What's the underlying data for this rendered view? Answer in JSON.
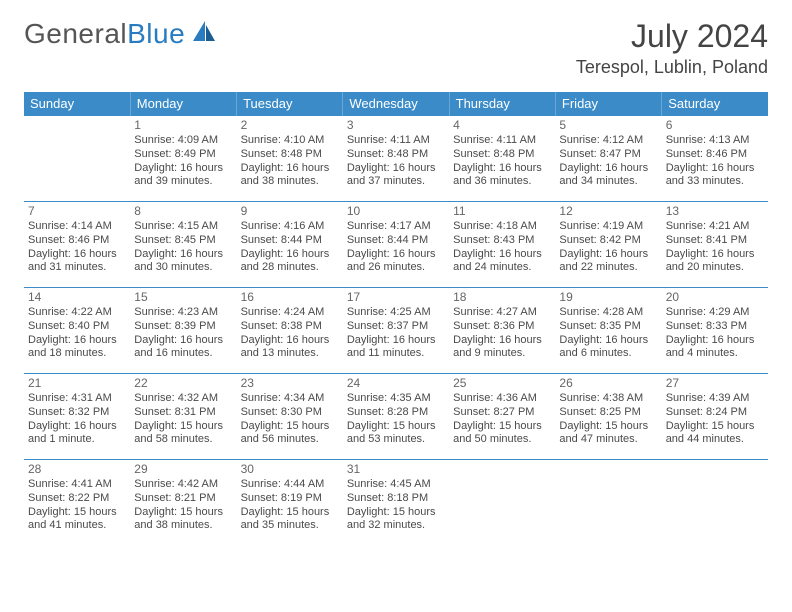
{
  "brand": {
    "part1": "General",
    "part2": "Blue"
  },
  "title": "July 2024",
  "location": "Terespol, Lublin, Poland",
  "colors": {
    "header_bg": "#3b8bc8",
    "header_text": "#ffffff",
    "rule": "#3b8bc8",
    "brand_blue": "#2a7cc0"
  },
  "weekdays": [
    "Sunday",
    "Monday",
    "Tuesday",
    "Wednesday",
    "Thursday",
    "Friday",
    "Saturday"
  ],
  "first_weekday_index": 1,
  "days": [
    {
      "n": 1,
      "sunrise": "4:09 AM",
      "sunset": "8:49 PM",
      "daylight": "16 hours and 39 minutes."
    },
    {
      "n": 2,
      "sunrise": "4:10 AM",
      "sunset": "8:48 PM",
      "daylight": "16 hours and 38 minutes."
    },
    {
      "n": 3,
      "sunrise": "4:11 AM",
      "sunset": "8:48 PM",
      "daylight": "16 hours and 37 minutes."
    },
    {
      "n": 4,
      "sunrise": "4:11 AM",
      "sunset": "8:48 PM",
      "daylight": "16 hours and 36 minutes."
    },
    {
      "n": 5,
      "sunrise": "4:12 AM",
      "sunset": "8:47 PM",
      "daylight": "16 hours and 34 minutes."
    },
    {
      "n": 6,
      "sunrise": "4:13 AM",
      "sunset": "8:46 PM",
      "daylight": "16 hours and 33 minutes."
    },
    {
      "n": 7,
      "sunrise": "4:14 AM",
      "sunset": "8:46 PM",
      "daylight": "16 hours and 31 minutes."
    },
    {
      "n": 8,
      "sunrise": "4:15 AM",
      "sunset": "8:45 PM",
      "daylight": "16 hours and 30 minutes."
    },
    {
      "n": 9,
      "sunrise": "4:16 AM",
      "sunset": "8:44 PM",
      "daylight": "16 hours and 28 minutes."
    },
    {
      "n": 10,
      "sunrise": "4:17 AM",
      "sunset": "8:44 PM",
      "daylight": "16 hours and 26 minutes."
    },
    {
      "n": 11,
      "sunrise": "4:18 AM",
      "sunset": "8:43 PM",
      "daylight": "16 hours and 24 minutes."
    },
    {
      "n": 12,
      "sunrise": "4:19 AM",
      "sunset": "8:42 PM",
      "daylight": "16 hours and 22 minutes."
    },
    {
      "n": 13,
      "sunrise": "4:21 AM",
      "sunset": "8:41 PM",
      "daylight": "16 hours and 20 minutes."
    },
    {
      "n": 14,
      "sunrise": "4:22 AM",
      "sunset": "8:40 PM",
      "daylight": "16 hours and 18 minutes."
    },
    {
      "n": 15,
      "sunrise": "4:23 AM",
      "sunset": "8:39 PM",
      "daylight": "16 hours and 16 minutes."
    },
    {
      "n": 16,
      "sunrise": "4:24 AM",
      "sunset": "8:38 PM",
      "daylight": "16 hours and 13 minutes."
    },
    {
      "n": 17,
      "sunrise": "4:25 AM",
      "sunset": "8:37 PM",
      "daylight": "16 hours and 11 minutes."
    },
    {
      "n": 18,
      "sunrise": "4:27 AM",
      "sunset": "8:36 PM",
      "daylight": "16 hours and 9 minutes."
    },
    {
      "n": 19,
      "sunrise": "4:28 AM",
      "sunset": "8:35 PM",
      "daylight": "16 hours and 6 minutes."
    },
    {
      "n": 20,
      "sunrise": "4:29 AM",
      "sunset": "8:33 PM",
      "daylight": "16 hours and 4 minutes."
    },
    {
      "n": 21,
      "sunrise": "4:31 AM",
      "sunset": "8:32 PM",
      "daylight": "16 hours and 1 minute."
    },
    {
      "n": 22,
      "sunrise": "4:32 AM",
      "sunset": "8:31 PM",
      "daylight": "15 hours and 58 minutes."
    },
    {
      "n": 23,
      "sunrise": "4:34 AM",
      "sunset": "8:30 PM",
      "daylight": "15 hours and 56 minutes."
    },
    {
      "n": 24,
      "sunrise": "4:35 AM",
      "sunset": "8:28 PM",
      "daylight": "15 hours and 53 minutes."
    },
    {
      "n": 25,
      "sunrise": "4:36 AM",
      "sunset": "8:27 PM",
      "daylight": "15 hours and 50 minutes."
    },
    {
      "n": 26,
      "sunrise": "4:38 AM",
      "sunset": "8:25 PM",
      "daylight": "15 hours and 47 minutes."
    },
    {
      "n": 27,
      "sunrise": "4:39 AM",
      "sunset": "8:24 PM",
      "daylight": "15 hours and 44 minutes."
    },
    {
      "n": 28,
      "sunrise": "4:41 AM",
      "sunset": "8:22 PM",
      "daylight": "15 hours and 41 minutes."
    },
    {
      "n": 29,
      "sunrise": "4:42 AM",
      "sunset": "8:21 PM",
      "daylight": "15 hours and 38 minutes."
    },
    {
      "n": 30,
      "sunrise": "4:44 AM",
      "sunset": "8:19 PM",
      "daylight": "15 hours and 35 minutes."
    },
    {
      "n": 31,
      "sunrise": "4:45 AM",
      "sunset": "8:18 PM",
      "daylight": "15 hours and 32 minutes."
    }
  ],
  "labels": {
    "sunrise": "Sunrise:",
    "sunset": "Sunset:",
    "daylight": "Daylight:"
  }
}
